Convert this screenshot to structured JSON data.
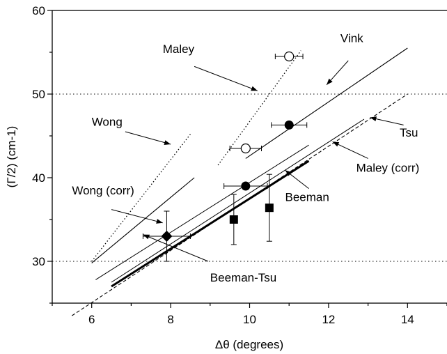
{
  "chart_data": {
    "type": "scatter",
    "xlabel": "Δθ (degrees)",
    "ylabel": "(Γ/2) (cm-1)",
    "xlim": [
      5,
      15
    ],
    "ylim": [
      25,
      60
    ],
    "xticks": [
      6,
      8,
      10,
      12,
      14
    ],
    "yticks": [
      30,
      40,
      50,
      60
    ],
    "x_tick_labels": [
      "6",
      "8",
      "10",
      "12",
      "14"
    ],
    "y_tick_labels": [
      "30",
      "40",
      "50",
      "60"
    ],
    "grid": "dotted horizontal lines at 30 and 50",
    "hlines": [
      30,
      50
    ],
    "lines": [
      {
        "id": "wong",
        "x1": 6.0,
        "y1": 30.0,
        "x2": 8.5,
        "y2": 45.2,
        "style": "dotted",
        "width": 1.3
      },
      {
        "id": "wong-corr",
        "x1": 6.0,
        "y1": 29.8,
        "x2": 8.6,
        "y2": 40.0,
        "style": "solid",
        "width": 1.1
      },
      {
        "id": "maley",
        "x1": 9.2,
        "y1": 41.5,
        "x2": 11.3,
        "y2": 55.2,
        "style": "dotted",
        "width": 1.3
      },
      {
        "id": "vink",
        "x1": 9.9,
        "y1": 42.3,
        "x2": 14.0,
        "y2": 55.5,
        "style": "solid",
        "width": 1.1
      },
      {
        "id": "tsu",
        "x1": 5.5,
        "y1": 23.5,
        "x2": 14.0,
        "y2": 50.0,
        "style": "dashed",
        "width": 1.1
      },
      {
        "id": "maley-corr",
        "x1": 6.5,
        "y1": 27.5,
        "x2": 12.9,
        "y2": 47.0,
        "style": "solid",
        "width": 1.0
      },
      {
        "id": "beeman",
        "x1": 6.1,
        "y1": 27.8,
        "x2": 11.5,
        "y2": 43.9,
        "style": "solid",
        "width": 1.0
      },
      {
        "id": "beeman-tsu",
        "x1": 6.5,
        "y1": 27.0,
        "x2": 11.5,
        "y2": 42.0,
        "style": "solid",
        "width": 3.0
      }
    ],
    "points": [
      {
        "marker": "open-circle",
        "x": 11.0,
        "y": 54.5,
        "xerr": 0.35,
        "yerr": 0
      },
      {
        "marker": "filled-circle",
        "x": 11.0,
        "y": 46.3,
        "xerr": 0.45,
        "yerr": 0
      },
      {
        "marker": "open-circle",
        "x": 9.9,
        "y": 43.5,
        "xerr": 0.4,
        "yerr": 0
      },
      {
        "marker": "filled-circle",
        "x": 9.9,
        "y": 39.0,
        "xerr": 0.55,
        "yerr": 0
      },
      {
        "marker": "filled-square",
        "x": 9.6,
        "y": 35.0,
        "xerr": 0,
        "yerr": 3.0
      },
      {
        "marker": "filled-square",
        "x": 10.5,
        "y": 36.4,
        "xerr": 0,
        "yerr": 4.0
      },
      {
        "marker": "filled-diamond",
        "x": 7.9,
        "y": 33.0,
        "xerr": 0.6,
        "yerr": 3.0
      }
    ],
    "annotations": [
      {
        "text": "Maley",
        "x": 7.8,
        "y": 54.9,
        "anchor": "start",
        "arrow_from": [
          8.6,
          53.3
        ],
        "arrow_to": [
          10.2,
          50.4
        ]
      },
      {
        "text": "Vink",
        "x": 12.3,
        "y": 56.2,
        "anchor": "start",
        "arrow_from": [
          12.5,
          54.0
        ],
        "arrow_to": [
          11.95,
          51.1
        ]
      },
      {
        "text": "Wong",
        "x": 6.0,
        "y": 46.2,
        "anchor": "start",
        "arrow_from": [
          6.85,
          45.5
        ],
        "arrow_to": [
          8.0,
          44.0
        ]
      },
      {
        "text": "Tsu",
        "x": 13.8,
        "y": 44.9,
        "anchor": "start",
        "arrow_from": [
          13.9,
          46.3
        ],
        "arrow_to": [
          13.05,
          47.2
        ]
      },
      {
        "text": "Maley (corr)",
        "x": 12.7,
        "y": 40.7,
        "anchor": "start",
        "arrow_from": [
          13.0,
          42.3
        ],
        "arrow_to": [
          12.1,
          44.3
        ]
      },
      {
        "text": "Wong (corr)",
        "x": 5.5,
        "y": 38.0,
        "anchor": "start",
        "arrow_from": [
          6.5,
          36.2
        ],
        "arrow_to": [
          7.8,
          34.6
        ]
      },
      {
        "text": "Beeman",
        "x": 10.9,
        "y": 37.2,
        "anchor": "start",
        "arrow_from": [
          11.5,
          38.7
        ],
        "arrow_to": [
          10.9,
          40.9
        ]
      },
      {
        "text": "Beeman-Tsu",
        "x": 9.0,
        "y": 27.6,
        "anchor": "start",
        "arrow_from": [
          8.95,
          30.0
        ],
        "arrow_to": [
          7.3,
          33.2
        ]
      }
    ]
  }
}
